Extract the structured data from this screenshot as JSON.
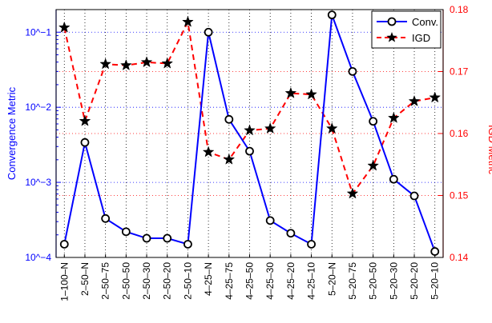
{
  "chart_data": {
    "type": "line",
    "categories": [
      "1-100-N",
      "2-50-N",
      "2-50-75",
      "2-50-50",
      "2-50-30",
      "2-50-20",
      "2-50-10",
      "4-25-N",
      "4-25-75",
      "4-25-50",
      "4-25-30",
      "4-25-20",
      "4-25-10",
      "5-20-N",
      "5-20-75",
      "5-20-50",
      "5-20-30",
      "5-20-20",
      "5-20-10"
    ],
    "category_labels": [
      "1–100–N",
      "2–50–N",
      "2–50–75",
      "2–50–50",
      "2–50–30",
      "2–50–20",
      "2–50–10",
      "4–25–N",
      "4–25–75",
      "4–25–50",
      "4–25–30",
      "4–25–20",
      "4–25–10",
      "5–20–N",
      "5–20–75",
      "5–20–50",
      "5–20–30",
      "5–20–20",
      "5–20–10"
    ],
    "series": [
      {
        "name": "Conv.",
        "axis": "left",
        "color": "#0000ff",
        "marker": "circle",
        "line_style": "solid",
        "values": [
          0.00015,
          0.0034,
          0.00033,
          0.00022,
          0.00018,
          0.00018,
          0.00015,
          0.1,
          0.0069,
          0.0026,
          0.00031,
          0.00021,
          0.00015,
          0.17,
          0.03,
          0.0065,
          0.0011,
          0.00066,
          0.00012
        ]
      },
      {
        "name": "IGD",
        "axis": "right",
        "color": "#ff0000",
        "marker": "star",
        "line_style": "dashed",
        "values": [
          0.1771,
          0.162,
          0.1712,
          0.171,
          0.1715,
          0.1713,
          0.178,
          0.157,
          0.1558,
          0.1605,
          0.1608,
          0.1665,
          0.1663,
          0.1608,
          0.1503,
          0.1548,
          0.1625,
          0.1652,
          0.1658
        ]
      }
    ],
    "y_left": {
      "label": "Convergence Metric",
      "scale": "log",
      "ylim": [
        0.0001,
        0.2
      ],
      "ticks": [
        0.0001,
        0.001,
        0.01,
        0.1
      ],
      "tick_labels": [
        "10^−4",
        "10^−3",
        "10^−2",
        "10^−1"
      ],
      "color": "#0000ff"
    },
    "y_right": {
      "label": "IGD Metric",
      "scale": "linear",
      "ylim": [
        0.14,
        0.18
      ],
      "ticks": [
        0.14,
        0.15,
        0.16,
        0.17,
        0.18
      ],
      "tick_labels": [
        "0.14",
        "0.15",
        "0.16",
        "0.17",
        "0.18"
      ],
      "color": "#ff0000"
    },
    "grid": true,
    "legend_position": "top-right"
  }
}
